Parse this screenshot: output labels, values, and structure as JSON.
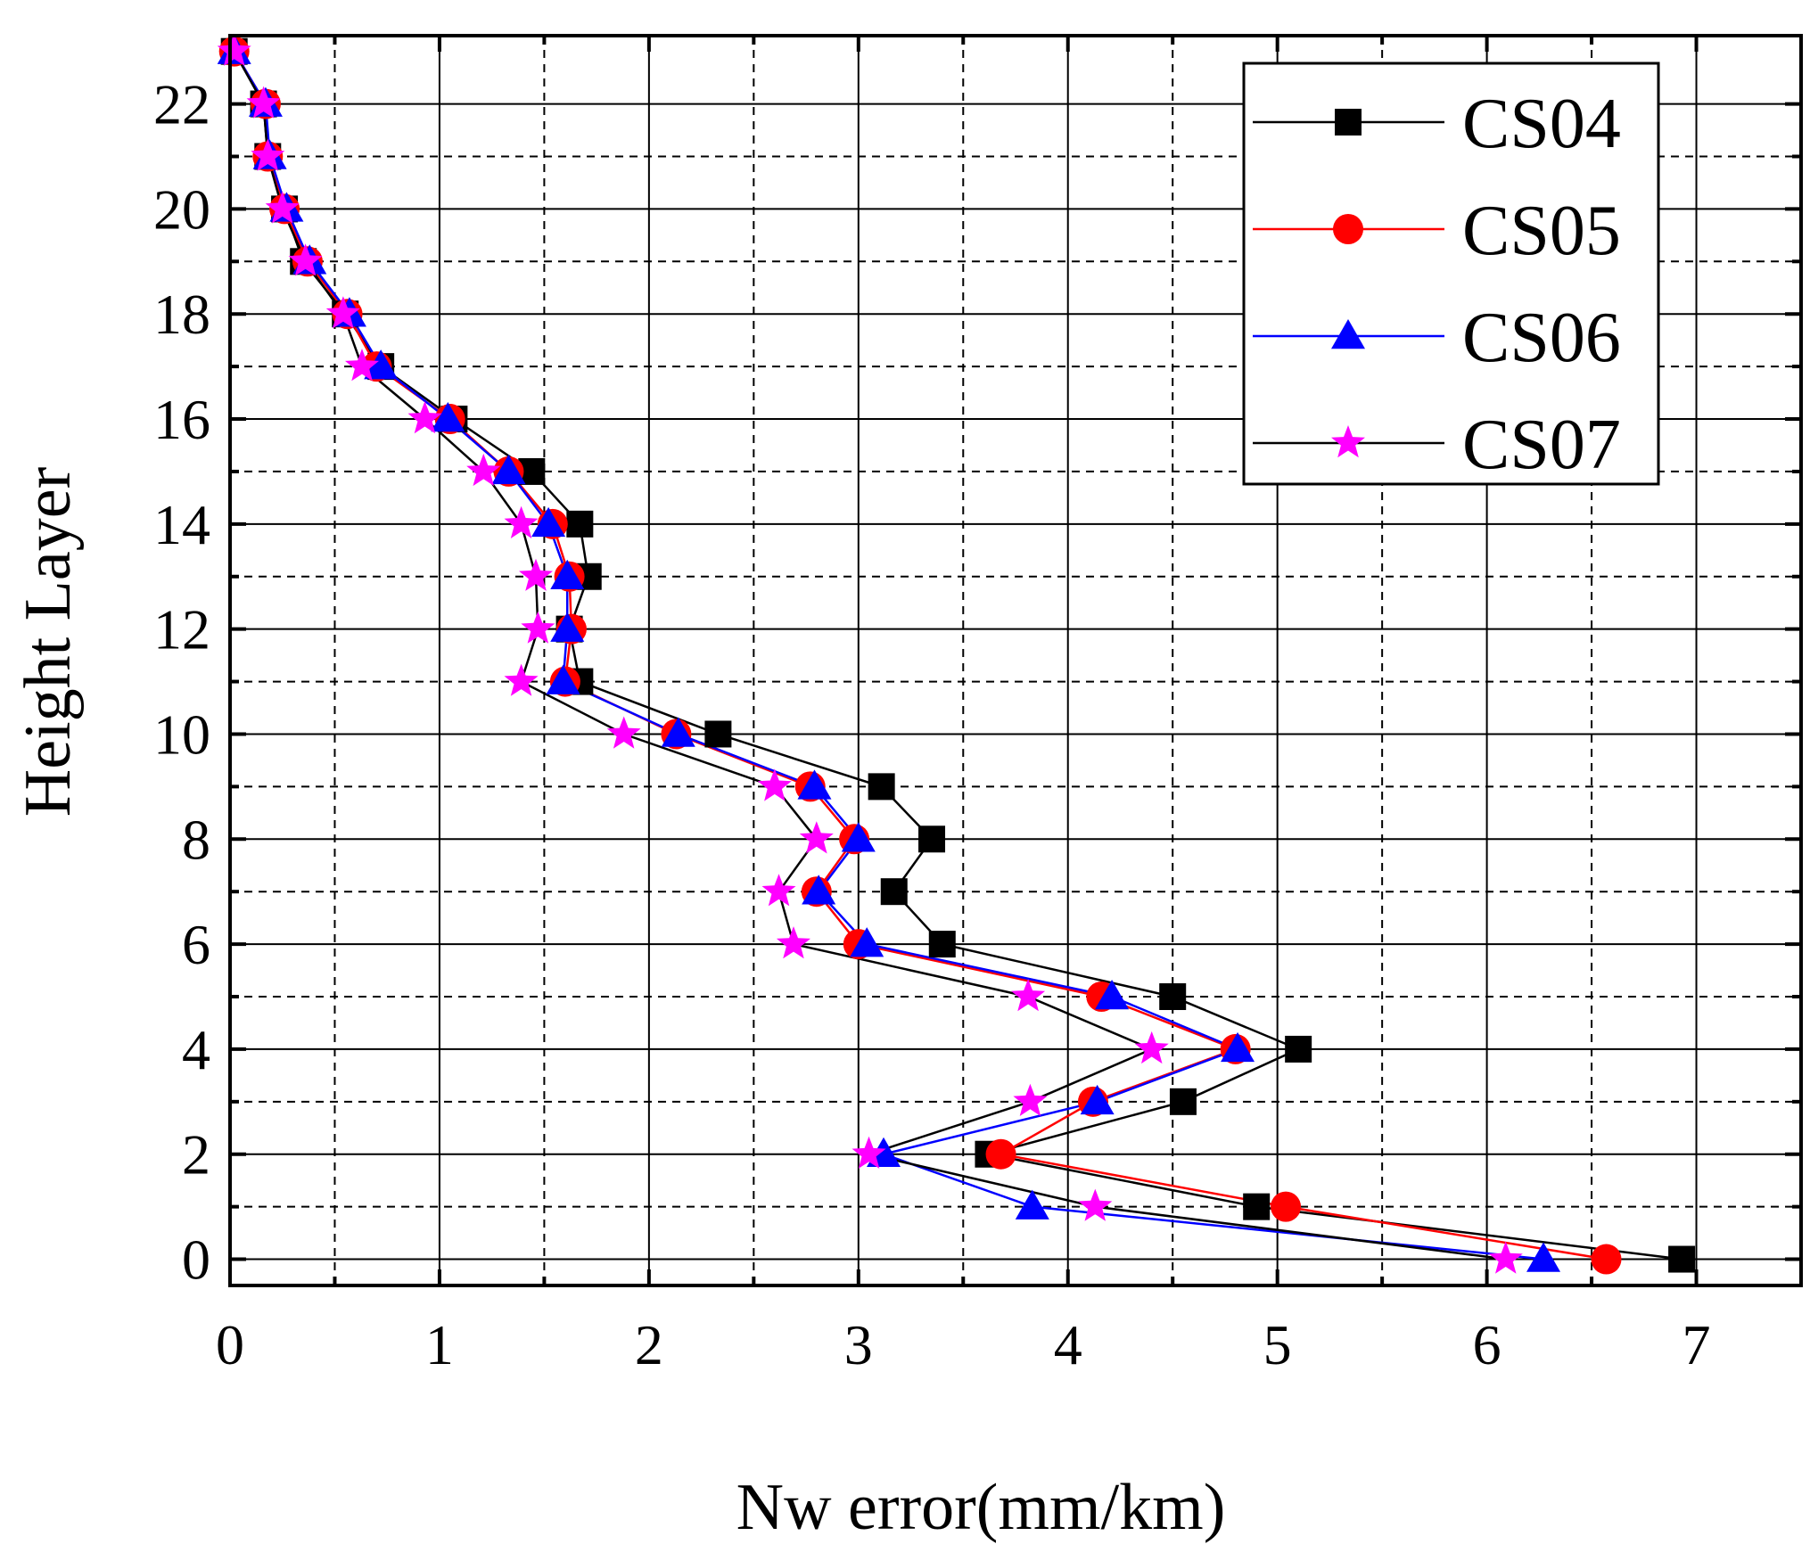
{
  "chart_data": {
    "type": "line",
    "title": "",
    "xlabel": "Nw error(mm/km)",
    "ylabel": "Height Layer",
    "xlim": [
      0,
      7.5
    ],
    "ylim": [
      -0.5,
      23.3
    ],
    "x_ticks": [
      0,
      1,
      2,
      3,
      4,
      5,
      6,
      7
    ],
    "y_ticks": [
      0,
      2,
      4,
      6,
      8,
      10,
      12,
      14,
      16,
      18,
      20,
      22
    ],
    "x_tick_labels": [
      "0",
      "1",
      "2",
      "3",
      "4",
      "5",
      "6",
      "7"
    ],
    "y_tick_labels": [
      "0",
      "2",
      "4",
      "6",
      "8",
      "10",
      "12",
      "14",
      "16",
      "18",
      "20",
      "22"
    ],
    "x_minor_ticks": [
      0.5,
      1.5,
      2.5,
      3.5,
      4.5,
      5.5,
      6.5
    ],
    "y_minor_ticks": [
      1,
      3,
      5,
      7,
      9,
      11,
      13,
      15,
      17,
      19,
      21
    ],
    "grid": true,
    "legend_position": "top-right",
    "layers": [
      0,
      1,
      2,
      3,
      4,
      5,
      6,
      7,
      8,
      9,
      10,
      11,
      12,
      13,
      14,
      15,
      16,
      17,
      18,
      19,
      20,
      21,
      22,
      23
    ],
    "series": [
      {
        "name": "CS04",
        "line_color": "#000000",
        "marker_color": "#000000",
        "marker": "square",
        "values": [
          6.93,
          4.9,
          3.62,
          4.55,
          5.1,
          4.5,
          3.4,
          3.17,
          3.35,
          3.11,
          2.33,
          1.67,
          1.62,
          1.71,
          1.67,
          1.44,
          1.07,
          0.72,
          0.55,
          0.35,
          0.26,
          0.18,
          0.16,
          0.02
        ]
      },
      {
        "name": "CS05",
        "line_color": "#ff0000",
        "marker_color": "#ff0000",
        "marker": "circle",
        "values": [
          6.57,
          5.04,
          3.68,
          4.12,
          4.8,
          4.16,
          3.0,
          2.8,
          2.98,
          2.77,
          2.13,
          1.6,
          1.63,
          1.62,
          1.54,
          1.33,
          1.05,
          0.7,
          0.56,
          0.37,
          0.26,
          0.18,
          0.17,
          0.02
        ]
      },
      {
        "name": "CS06",
        "line_color": "#0000ff",
        "marker_color": "#0000ff",
        "marker": "triangle",
        "values": [
          6.27,
          3.83,
          3.12,
          4.14,
          4.81,
          4.21,
          3.04,
          2.81,
          3.0,
          2.79,
          2.14,
          1.59,
          1.61,
          1.61,
          1.52,
          1.33,
          1.04,
          0.72,
          0.57,
          0.38,
          0.27,
          0.19,
          0.17,
          0.02
        ]
      },
      {
        "name": "CS07",
        "line_color": "#000000",
        "marker_color": "#ff00ff",
        "marker": "star",
        "values": [
          6.09,
          4.13,
          3.05,
          3.82,
          4.4,
          3.81,
          2.69,
          2.62,
          2.8,
          2.6,
          1.88,
          1.39,
          1.47,
          1.46,
          1.39,
          1.21,
          0.93,
          0.63,
          0.54,
          0.36,
          0.25,
          0.18,
          0.16,
          0.02
        ]
      }
    ]
  }
}
